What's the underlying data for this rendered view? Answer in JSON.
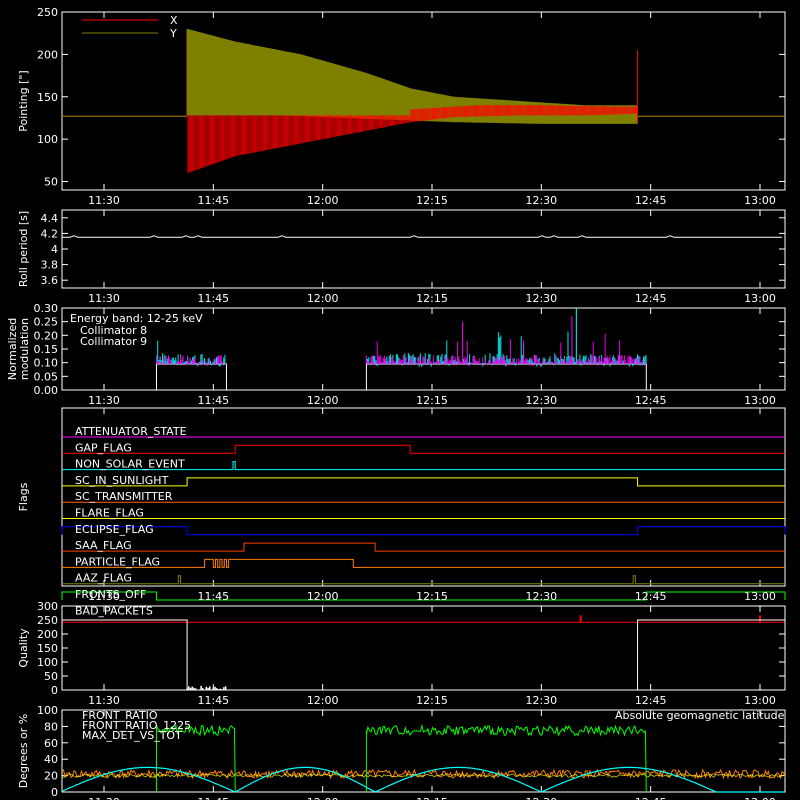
{
  "colors": {
    "background": "#000000",
    "axes": "#ffffff",
    "red": "#ff0000",
    "olive": "#808000",
    "cyan": "#00ffff",
    "magenta": "#ff00ff",
    "green": "#00ff00",
    "orange": "#ff8000",
    "yellow": "#ffff00",
    "blue": "#0000ff",
    "darkorange": "#ff6000",
    "white": "#ffffff"
  },
  "chart_data": [
    {
      "type": "line",
      "ylabel": "Pointing [\"]",
      "ylim": [
        40,
        250
      ],
      "yticks": [
        50,
        100,
        150,
        200,
        250
      ],
      "xticks": [
        "11:30",
        "11:45",
        "12:00",
        "12:15",
        "12:30",
        "12:45",
        "13:00"
      ],
      "xlim_minutes": [
        22,
        84
      ],
      "series": [
        {
          "name": "X",
          "color": "#ff0000",
          "baseline": 127,
          "active_range": [
            11.69,
            12.72
          ],
          "envelope_low": [
            [
              11.69,
              60
            ],
            [
              11.8,
              80
            ],
            [
              11.95,
              95
            ],
            [
              12.1,
              110
            ],
            [
              12.2,
              120
            ],
            [
              12.3,
              126
            ],
            [
              12.45,
              128
            ],
            [
              12.6,
              128
            ],
            [
              12.72,
              130
            ]
          ],
          "envelope_high": [
            [
              11.69,
              130
            ],
            [
              11.9,
              130
            ],
            [
              12.1,
              128
            ],
            [
              12.2,
              135
            ],
            [
              12.35,
              140
            ],
            [
              12.5,
              140
            ],
            [
              12.72,
              138
            ]
          ],
          "end_spike": 205
        },
        {
          "name": "Y",
          "color": "#808000",
          "baseline": 127,
          "active_range": [
            11.69,
            12.72
          ],
          "envelope_low": [
            [
              11.69,
              130
            ],
            [
              11.9,
              128
            ],
            [
              12.1,
              124
            ],
            [
              12.3,
              120
            ],
            [
              12.5,
              118
            ],
            [
              12.72,
              118
            ]
          ],
          "envelope_high": [
            [
              11.69,
              230
            ],
            [
              11.8,
              215
            ],
            [
              11.95,
              200
            ],
            [
              12.1,
              178
            ],
            [
              12.2,
              160
            ],
            [
              12.3,
              150
            ],
            [
              12.45,
              145
            ],
            [
              12.6,
              140
            ],
            [
              12.72,
              140
            ]
          ]
        }
      ]
    },
    {
      "type": "line",
      "ylabel": "Roll period [s]",
      "ylim": [
        3.5,
        4.5
      ],
      "yticks": [
        3.6,
        3.8,
        4.0,
        4.2,
        4.4
      ],
      "xticks": [
        "11:30",
        "11:45",
        "12:00",
        "12:15",
        "12:30",
        "12:45",
        "13:00"
      ],
      "series": [
        {
          "name": "",
          "color": "#ffffff",
          "value": 4.15
        }
      ]
    },
    {
      "type": "line",
      "ylabel": "Normalized modulation",
      "ylim": [
        0.0,
        0.3
      ],
      "yticks": [
        "0.00",
        "0.05",
        "0.10",
        "0.15",
        "0.20",
        "0.25",
        "0.30"
      ],
      "xticks": [
        "11:30",
        "11:45",
        "12:00",
        "12:15",
        "12:30",
        "12:45",
        "13:00"
      ],
      "annotation": "Energy band: 12-25 keV",
      "intervals": [
        [
          11.62,
          11.78
        ],
        [
          12.1,
          12.74
        ]
      ],
      "series": [
        {
          "name": "Collimator 8",
          "color": "#00ffff",
          "level": 0.1,
          "spread": 0.05
        },
        {
          "name": "Collimator 9",
          "color": "#ff00ff",
          "level": 0.1,
          "spread": 0.04
        }
      ]
    },
    {
      "type": "table",
      "ylabel": "Flags",
      "xticks": [
        "11:30",
        "11:45",
        "12:00",
        "12:15",
        "12:30",
        "12:45",
        "13:00"
      ],
      "flags": [
        {
          "name": "ATTENUATOR_STATE",
          "color": "#ff00ff",
          "high": []
        },
        {
          "name": "GAP_FLAG",
          "color": "#ff0000",
          "high": [
            [
              11.8,
              12.2
            ]
          ]
        },
        {
          "name": "NON_SOLAR_EVENT",
          "color": "#00ffff",
          "high": [
            [
              11.795,
              11.8
            ]
          ]
        },
        {
          "name": "SC_IN_SUNLIGHT",
          "color": "#ffff00",
          "high": [
            [
              11.69,
              12.72
            ]
          ]
        },
        {
          "name": "SC_TRANSMITTER",
          "color": "#ff6000",
          "high": []
        },
        {
          "name": "FLARE_FLAG",
          "color": "#ffff00",
          "high": []
        },
        {
          "name": "ECLIPSE_FLAG",
          "color": "#0000ff",
          "high": [
            [
              11.4,
              11.69
            ],
            [
              12.72,
              13.1
            ]
          ]
        },
        {
          "name": "SAA_FLAG",
          "color": "#ff4000",
          "high": [
            [
              11.82,
              12.12
            ]
          ]
        },
        {
          "name": "PARTICLE_FLAG",
          "color": "#ff8000",
          "high": [
            [
              11.73,
              11.75
            ],
            [
              11.755,
              11.76
            ],
            [
              11.765,
              11.77
            ],
            [
              11.775,
              11.78
            ],
            [
              11.785,
              12.07
            ]
          ]
        },
        {
          "name": "AAZ_FLAG",
          "color": "#808000",
          "high": [
            [
              11.67,
              11.675
            ],
            [
              12.71,
              12.715
            ]
          ]
        },
        {
          "name": "FRONTS_OFF",
          "color": "#00ff00",
          "high": [
            [
              11.4,
              11.62
            ],
            [
              12.74,
              13.1
            ]
          ]
        },
        {
          "name": "BAD_PACKETS",
          "color": "#ff0000",
          "spikes": [
            12.59,
            13.0
          ]
        }
      ]
    },
    {
      "type": "line",
      "ylabel": "Quality",
      "ylim": [
        0,
        300
      ],
      "yticks": [
        0,
        50,
        100,
        150,
        200,
        250,
        300
      ],
      "xticks": [
        "11:30",
        "11:45",
        "12:00",
        "12:15",
        "12:30",
        "12:45",
        "13:00"
      ],
      "series": [
        {
          "name": "",
          "color": "#ffffff",
          "segments": [
            [
              11.4,
              11.69,
              250
            ],
            [
              12.72,
              13.1,
              250
            ]
          ],
          "dropout": [
            11.69,
            11.78
          ]
        }
      ]
    },
    {
      "type": "line",
      "ylabel": "Degrees or %",
      "ylim": [
        0,
        100
      ],
      "yticks": [
        0,
        20,
        40,
        60,
        80,
        100
      ],
      "xticks": [
        "11:30",
        "11:45",
        "12:00",
        "12:15",
        "12:30",
        "12:45",
        "13:00"
      ],
      "annotation": "Absolute geomagnetic latitude",
      "series": [
        {
          "name": "FRONT_RATIO",
          "color": "#ffff00",
          "level": 20
        },
        {
          "name": "FRONT_RATIO_1225",
          "color": "#00ff00",
          "intervals": [
            [
              11.62,
              11.8
            ],
            [
              12.1,
              12.74
            ]
          ],
          "level": 75
        },
        {
          "name": "MAX_DET_VS_TOT",
          "color": "#ff8000",
          "level": 22
        },
        {
          "name": "Absolute geomagnetic latitude",
          "color": "#00ffff",
          "minima": [
            11.4,
            11.8,
            12.12,
            12.5,
            12.9
          ],
          "peak": 30
        }
      ]
    }
  ]
}
